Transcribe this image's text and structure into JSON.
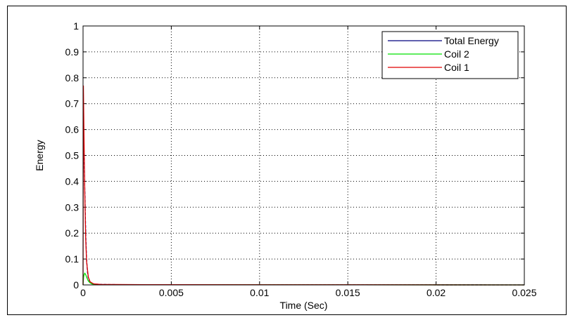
{
  "chart_data": {
    "type": "line",
    "title": "",
    "xlabel": "Time (Sec)",
    "ylabel": "Energy",
    "xlim": [
      0,
      0.025
    ],
    "ylim": [
      0,
      1
    ],
    "x_ticks": [
      0,
      0.005,
      0.01,
      0.015,
      0.02,
      0.025
    ],
    "x_tick_labels": [
      "0",
      "0.005",
      "0.01",
      "0.015",
      "0.02",
      "0.025"
    ],
    "y_ticks": [
      0,
      0.1,
      0.2,
      0.3,
      0.4,
      0.5,
      0.6,
      0.7,
      0.8,
      0.9,
      1
    ],
    "y_tick_labels": [
      "0",
      "0.1",
      "0.2",
      "0.3",
      "0.4",
      "0.5",
      "0.6",
      "0.7",
      "0.8",
      "0.9",
      "1"
    ],
    "grid": true,
    "legend_position": "top-right",
    "series": [
      {
        "name": "Total Energy",
        "color": "#00007f",
        "dash": "4,2",
        "x": [
          0,
          4e-05,
          8e-05,
          0.00012,
          0.00016,
          0.0002,
          0.00025,
          0.0003,
          0.0004,
          0.0005,
          0.0007,
          0.001,
          0.002,
          0.0036,
          0.025
        ],
        "y": [
          0.57,
          0.57,
          0.43,
          0.3,
          0.18,
          0.1,
          0.05,
          0.025,
          0.012,
          0.006,
          0.003,
          0.002,
          0.001,
          0.001,
          0.0
        ]
      },
      {
        "name": "Coil 2",
        "color": "#00e000",
        "dash": "",
        "x": [
          0,
          3e-05,
          6e-05,
          0.0001,
          0.00015,
          0.0002,
          0.0003,
          0.0004,
          0.0005,
          0.0007,
          0.025
        ],
        "y": [
          0.0,
          0.03,
          0.04,
          0.045,
          0.04,
          0.03,
          0.015,
          0.008,
          0.004,
          0.001,
          0.0
        ]
      },
      {
        "name": "Coil 1",
        "color": "#e00000",
        "dash": "",
        "x": [
          0,
          2e-05,
          5e-05,
          0.0001,
          0.00015,
          0.0002,
          0.0003,
          0.0004,
          0.0006,
          0.001,
          0.0036,
          0.025
        ],
        "y": [
          0.0,
          0.77,
          0.6,
          0.35,
          0.18,
          0.09,
          0.03,
          0.012,
          0.004,
          0.002,
          0.001,
          0.0
        ]
      }
    ]
  }
}
